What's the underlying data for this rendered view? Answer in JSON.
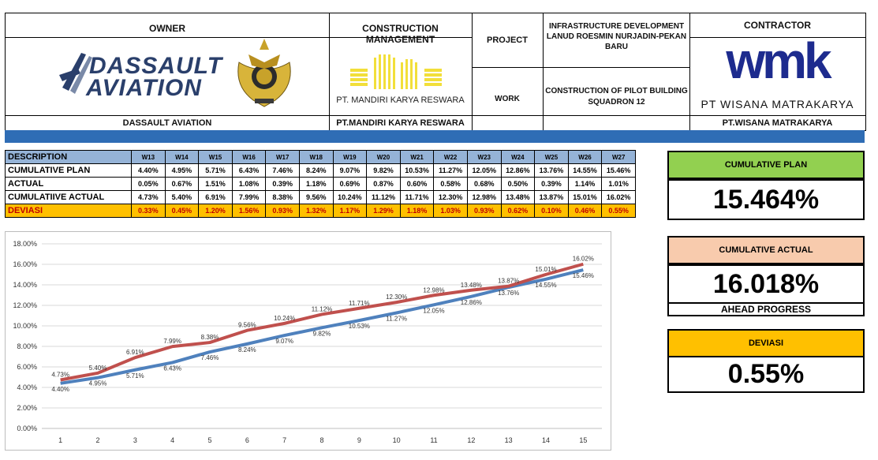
{
  "header": {
    "owner_title": "OWNER",
    "owner_logo_text_1": "DASSAULT",
    "owner_logo_text_2": "AVIATION",
    "owner_name": "DASSAULT AVIATION",
    "cm_title": "CONSTRUCTION MANAGEMENT",
    "cm_logo_text": "PT. MANDIRI KARYA RESWARA",
    "cm_name": "PT.MANDIRI KARYA RESWARA",
    "project_label": "PROJECT",
    "project_value": "INFRASTRUCTURE DEVELOPMENT LANUD ROESMIN NURJADIN-PEKAN BARU",
    "work_label": "WORK",
    "work_value": "CONSTRUCTION OF PILOT BUILDING SQUADRON 12",
    "contractor_title": "CONTRACTOR",
    "contractor_logo_text": "wmk",
    "contractor_logo_sub": "PT WISANA MATRAKARYA",
    "contractor_name": "PT.WISANA MATRAKARYA"
  },
  "table": {
    "desc_label": "DESCRIPTION",
    "weeks": [
      "W13",
      "W14",
      "W15",
      "W16",
      "W17",
      "W18",
      "W19",
      "W20",
      "W21",
      "W22",
      "W23",
      "W24",
      "W25",
      "W26",
      "W27"
    ],
    "rows": [
      {
        "label": "CUMULATIVE PLAN",
        "values": [
          "4.40%",
          "4.95%",
          "5.71%",
          "6.43%",
          "7.46%",
          "8.24%",
          "9.07%",
          "9.82%",
          "10.53%",
          "11.27%",
          "12.05%",
          "12.86%",
          "13.76%",
          "14.55%",
          "15.46%"
        ]
      },
      {
        "label": "ACTUAL",
        "values": [
          "0.05%",
          "0.67%",
          "1.51%",
          "1.08%",
          "0.39%",
          "1.18%",
          "0.69%",
          "0.87%",
          "0.60%",
          "0.58%",
          "0.68%",
          "0.50%",
          "0.39%",
          "1.14%",
          "1.01%"
        ]
      },
      {
        "label": "CUMULATIIVE ACTUAL",
        "values": [
          "4.73%",
          "5.40%",
          "6.91%",
          "7.99%",
          "8.38%",
          "9.56%",
          "10.24%",
          "11.12%",
          "11.71%",
          "12.30%",
          "12.98%",
          "13.48%",
          "13.87%",
          "15.01%",
          "16.02%"
        ]
      },
      {
        "label": "DEVIASI",
        "values": [
          "0.33%",
          "0.45%",
          "1.20%",
          "1.56%",
          "0.93%",
          "1.32%",
          "1.17%",
          "1.29%",
          "1.18%",
          "1.03%",
          "0.93%",
          "0.62%",
          "0.10%",
          "0.46%",
          "0.55%"
        ]
      }
    ]
  },
  "cards": {
    "plan_title": "CUMULATIVE PLAN",
    "plan_value": "15.464%",
    "actual_title": "CUMULATIVE ACTUAL",
    "actual_value": "16.018%",
    "actual_note": "AHEAD PROGRESS",
    "dev_title": "DEVIASI",
    "dev_value": "0.55%",
    "colors": {
      "plan": "#92d050",
      "actual": "#f8cbad",
      "dev": "#ffc000"
    }
  },
  "chart_data": {
    "type": "line",
    "x": [
      1,
      2,
      3,
      4,
      5,
      6,
      7,
      8,
      9,
      10,
      11,
      12,
      13,
      14,
      15
    ],
    "ylim": [
      0,
      18
    ],
    "y_ticks": [
      "0.00%",
      "2.00%",
      "4.00%",
      "6.00%",
      "8.00%",
      "10.00%",
      "12.00%",
      "14.00%",
      "16.00%",
      "18.00%"
    ],
    "grid": true,
    "series": [
      {
        "color": "#4f81bd",
        "values": [
          4.4,
          4.95,
          5.71,
          6.43,
          7.46,
          8.24,
          9.07,
          9.82,
          10.53,
          11.27,
          12.05,
          12.86,
          13.76,
          14.55,
          15.46
        ],
        "labels": [
          "4.40%",
          "4.95%",
          "5.71%",
          "6.43%",
          "7.46%",
          "8.24%",
          "9.07%",
          "9.82%",
          "10.53%",
          "11.27%",
          "12.05%",
          "12.86%",
          "13.76%",
          "14.55%",
          "15.46%"
        ]
      },
      {
        "color": "#c0504d",
        "values": [
          4.73,
          5.4,
          6.91,
          7.99,
          8.38,
          9.56,
          10.24,
          11.12,
          11.71,
          12.3,
          12.98,
          13.48,
          13.87,
          15.01,
          16.02
        ],
        "labels": [
          "4.73%",
          "5.40%",
          "6.91%",
          "7.99%",
          "8.38%",
          "9.56%",
          "10.24%",
          "11.12%",
          "11.71%",
          "12.30%",
          "12.98%",
          "13.48%",
          "13.87%",
          "15.01%",
          "16.02%"
        ]
      }
    ]
  }
}
